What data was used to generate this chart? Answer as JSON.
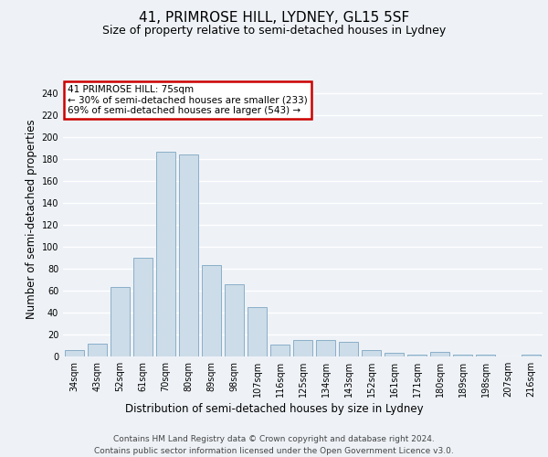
{
  "title": "41, PRIMROSE HILL, LYDNEY, GL15 5SF",
  "subtitle": "Size of property relative to semi-detached houses in Lydney",
  "xlabel": "Distribution of semi-detached houses by size in Lydney",
  "ylabel": "Number of semi-detached properties",
  "categories": [
    "34sqm",
    "43sqm",
    "52sqm",
    "61sqm",
    "70sqm",
    "80sqm",
    "89sqm",
    "98sqm",
    "107sqm",
    "116sqm",
    "125sqm",
    "134sqm",
    "143sqm",
    "152sqm",
    "161sqm",
    "171sqm",
    "180sqm",
    "189sqm",
    "198sqm",
    "207sqm",
    "216sqm"
  ],
  "values": [
    6,
    12,
    63,
    90,
    187,
    184,
    83,
    66,
    45,
    11,
    15,
    15,
    13,
    6,
    3,
    2,
    4,
    2,
    2,
    0,
    2
  ],
  "bar_color": "#ccdce8",
  "bar_edge_color": "#8aafc8",
  "highlight_index": 4,
  "annotation_text": "41 PRIMROSE HILL: 75sqm\n← 30% of semi-detached houses are smaller (233)\n69% of semi-detached houses are larger (543) →",
  "annotation_box_color": "#ffffff",
  "annotation_box_edge": "#cc0000",
  "ylim": [
    0,
    250
  ],
  "yticks": [
    0,
    20,
    40,
    60,
    80,
    100,
    120,
    140,
    160,
    180,
    200,
    220,
    240
  ],
  "footer_line1": "Contains HM Land Registry data © Crown copyright and database right 2024.",
  "footer_line2": "Contains public sector information licensed under the Open Government Licence v3.0.",
  "bg_color": "#eef2f7",
  "plot_bg_color": "#eef2f7",
  "grid_color": "#ffffff",
  "title_fontsize": 11,
  "subtitle_fontsize": 9,
  "axis_label_fontsize": 8.5,
  "tick_fontsize": 7,
  "footer_fontsize": 6.5
}
